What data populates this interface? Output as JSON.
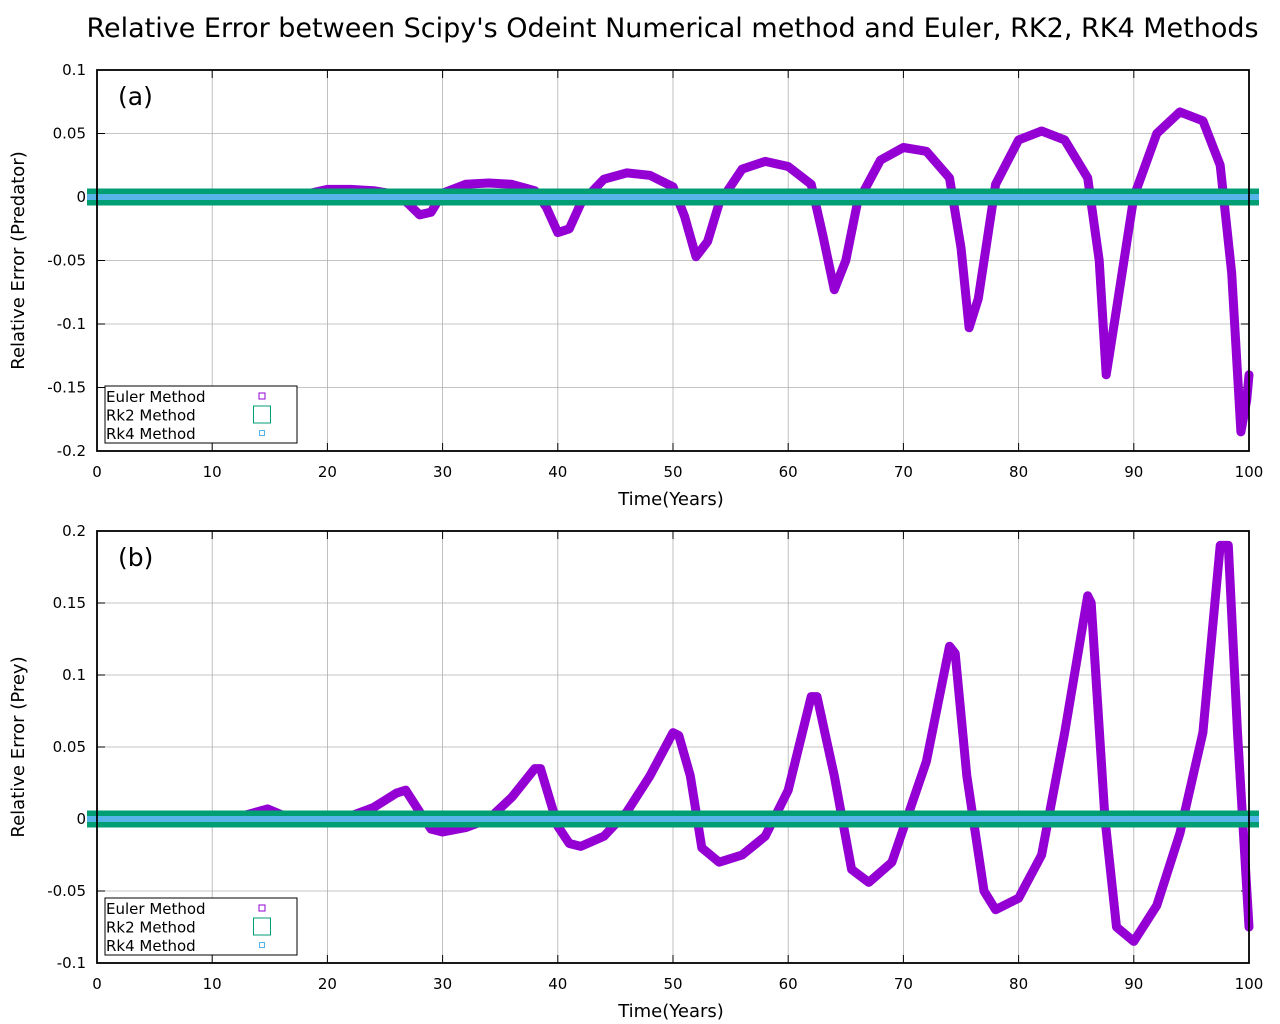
{
  "title": "Relative Error between Scipy's Odeint Numerical method and Euler, RK2, RK4 Methods",
  "colors": {
    "euler": "#9400d3",
    "rk2": "#009e73",
    "rk4": "#56b4e9",
    "grid": "#b0b0b0",
    "axis": "#000000"
  },
  "chart_data": [
    {
      "type": "line",
      "panel_label": "(a)",
      "xlabel": "Time(Years)",
      "ylabel": "Relative Error (Predator)",
      "xlim": [
        0,
        100
      ],
      "ylim": [
        -0.2,
        0.1
      ],
      "xticks": [
        0,
        10,
        20,
        30,
        40,
        50,
        60,
        70,
        80,
        90,
        100
      ],
      "yticks": [
        0.1,
        0.05,
        0,
        -0.05,
        -0.1,
        -0.15,
        -0.2
      ],
      "ytick_labels": [
        "0.1",
        "0.05",
        "0",
        "-0.05",
        "-0.1",
        "-0.15",
        "-0.2"
      ],
      "grid": true,
      "legend_position": "bottom-left",
      "legend": [
        "Euler Method",
        "Rk2 Method",
        "Rk4 Method"
      ],
      "series": [
        {
          "name": "Euler Method",
          "color": "#9400d3",
          "x": [
            0,
            10,
            16,
            18,
            20,
            22,
            24,
            26,
            27,
            28,
            29,
            30,
            32,
            34,
            36,
            38,
            39,
            40,
            41,
            42,
            44,
            46,
            48,
            50,
            51,
            52,
            53,
            54,
            56,
            58,
            60,
            62,
            63,
            64,
            65,
            66,
            68,
            70,
            72,
            74,
            75,
            75.7,
            76.5,
            78,
            80,
            82,
            84,
            86,
            87,
            87.6,
            88.3,
            90,
            92,
            94,
            96,
            97.5,
            98.5,
            99.3,
            99.8,
            100
          ],
          "y": [
            0,
            0,
            -0.003,
            0.002,
            0.006,
            0.006,
            0.005,
            0.002,
            -0.005,
            -0.014,
            -0.012,
            0.003,
            0.01,
            0.011,
            0.01,
            0.005,
            -0.008,
            -0.028,
            -0.025,
            -0.005,
            0.014,
            0.019,
            0.017,
            0.008,
            -0.015,
            -0.047,
            -0.035,
            -0.005,
            0.022,
            0.028,
            0.024,
            0.01,
            -0.03,
            -0.073,
            -0.05,
            -0.005,
            0.029,
            0.039,
            0.036,
            0.015,
            -0.04,
            -0.103,
            -0.08,
            0.01,
            0.045,
            0.052,
            0.045,
            0.015,
            -0.05,
            -0.14,
            -0.1,
            0.0,
            0.05,
            0.067,
            0.06,
            0.025,
            -0.06,
            -0.185,
            -0.16,
            -0.14
          ]
        },
        {
          "name": "Rk2 Method",
          "color": "#009e73",
          "x": [
            0,
            100
          ],
          "y": [
            0,
            0
          ]
        },
        {
          "name": "Rk4 Method",
          "color": "#56b4e9",
          "x": [
            0,
            100
          ],
          "y": [
            0,
            0
          ]
        }
      ]
    },
    {
      "type": "line",
      "panel_label": "(b)",
      "xlabel": "Time(Years)",
      "ylabel": "Relative Error (Prey)",
      "xlim": [
        0,
        100
      ],
      "ylim": [
        -0.1,
        0.2
      ],
      "xticks": [
        0,
        10,
        20,
        30,
        40,
        50,
        60,
        70,
        80,
        90,
        100
      ],
      "yticks": [
        0.2,
        0.15,
        0.1,
        0.05,
        0,
        -0.05,
        -0.1
      ],
      "ytick_labels": [
        "0.2",
        "0.15",
        "0.1",
        "0.05",
        "0",
        "-0.05",
        "-0.1"
      ],
      "grid": true,
      "legend_position": "bottom-left",
      "legend": [
        "Euler Method",
        "Rk2 Method",
        "Rk4 Method"
      ],
      "series": [
        {
          "name": "Euler Method",
          "color": "#9400d3",
          "x": [
            0,
            11,
            13,
            14.8,
            16,
            18,
            22,
            24,
            26,
            26.8,
            28,
            29,
            30,
            32,
            34,
            36,
            38,
            38.5,
            40,
            41,
            42,
            44,
            46,
            48,
            50,
            50.5,
            51.5,
            52.5,
            54,
            56,
            58,
            60,
            62,
            62.5,
            64,
            65.5,
            67,
            69,
            72,
            74,
            74.5,
            75.5,
            77,
            78,
            80,
            82,
            84,
            86,
            86.3,
            87.5,
            88.5,
            90,
            92,
            94,
            96,
            97.5,
            98.2,
            99,
            100
          ],
          "y": [
            0,
            0,
            0.003,
            0.007,
            0.003,
            0,
            0.002,
            0.008,
            0.018,
            0.02,
            0.005,
            -0.007,
            -0.009,
            -0.006,
            0.0,
            0.015,
            0.035,
            0.035,
            -0.005,
            -0.017,
            -0.019,
            -0.012,
            0.005,
            0.03,
            0.06,
            0.058,
            0.03,
            -0.02,
            -0.03,
            -0.025,
            -0.012,
            0.02,
            0.085,
            0.085,
            0.03,
            -0.035,
            -0.044,
            -0.03,
            0.04,
            0.12,
            0.115,
            0.03,
            -0.05,
            -0.063,
            -0.055,
            -0.025,
            0.06,
            0.155,
            0.15,
            0.0,
            -0.075,
            -0.085,
            -0.06,
            -0.01,
            0.06,
            0.19,
            0.19,
            0.06,
            -0.075
          ]
        },
        {
          "name": "Rk2 Method",
          "color": "#009e73",
          "x": [
            0,
            100
          ],
          "y": [
            0,
            0
          ]
        },
        {
          "name": "Rk4 Method",
          "color": "#56b4e9",
          "x": [
            0,
            100
          ],
          "y": [
            0,
            0
          ]
        }
      ]
    }
  ]
}
